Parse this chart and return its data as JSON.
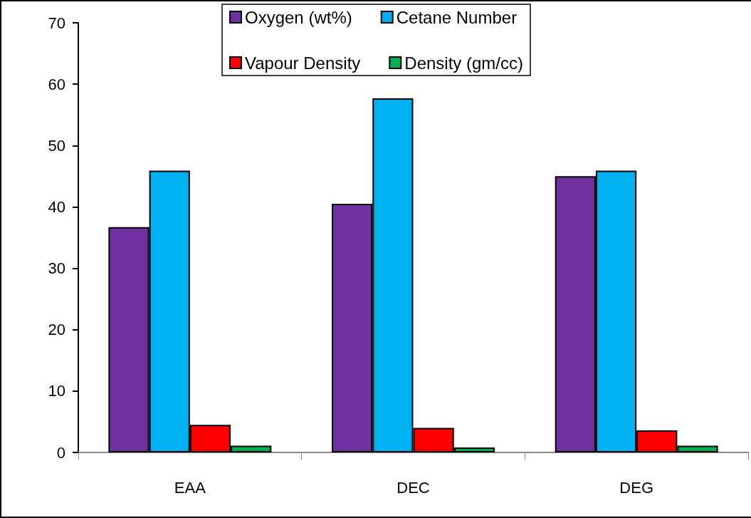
{
  "chart_data": {
    "type": "bar",
    "categories": [
      "EAA",
      "DEC",
      "DEG"
    ],
    "series": [
      {
        "name": "Oxygen (wt%)",
        "color": "#7030a0",
        "values": [
          36.7,
          40.5,
          45.0
        ]
      },
      {
        "name": "Cetane Number",
        "color": "#00b0f0",
        "values": [
          45.9,
          57.7,
          45.9
        ]
      },
      {
        "name": "Vapour Density",
        "color": "#ff0000",
        "values": [
          4.5,
          4.0,
          3.6
        ]
      },
      {
        "name": "Density (gm/cc)",
        "color": "#00b050",
        "values": [
          1.1,
          0.8,
          1.1
        ]
      }
    ],
    "ylim": [
      0,
      70
    ],
    "yticks": [
      0,
      10,
      20,
      30,
      40,
      50,
      60,
      70
    ],
    "grid": false,
    "legend": "top"
  }
}
